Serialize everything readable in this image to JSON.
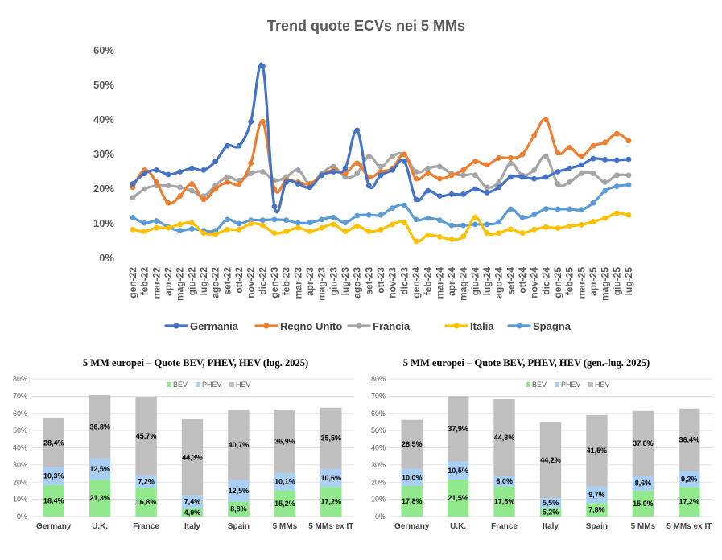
{
  "chart_data": [
    {
      "type": "line",
      "title": "Trend quote ECVs nei 5 MMs",
      "yticks": [
        "0%",
        "10%",
        "20%",
        "30%",
        "40%",
        "50%",
        "60%"
      ],
      "ylim": [
        0,
        60
      ],
      "legend_position": "bottom",
      "x": [
        "gen-22",
        "feb-22",
        "mar-22",
        "apr-22",
        "mag-22",
        "giu-22",
        "lug-22",
        "ago-22",
        "set-22",
        "ott-22",
        "nov-22",
        "dic-22",
        "gen-23",
        "feb-23",
        "mar-23",
        "apr-23",
        "mag-23",
        "giu-23",
        "lug-23",
        "ago-23",
        "set-23",
        "ott-23",
        "nov-23",
        "dic-23",
        "gen-24",
        "feb-24",
        "mar-24",
        "apr-24",
        "mag-24",
        "giu-24",
        "lug-24",
        "ago-24",
        "set-24",
        "ott-24",
        "nov-24",
        "dic-24",
        "gen-25",
        "feb-25",
        "mar-25",
        "apr-25",
        "mag-25",
        "giu-25",
        "lug-25"
      ],
      "series": [
        {
          "name": "Germania",
          "color": "#4472C4",
          "values": [
            21.5,
            24.5,
            25.5,
            24.2,
            25.0,
            26.0,
            25.5,
            28.0,
            32.5,
            32.5,
            39.5,
            55.5,
            15.0,
            22.0,
            21.5,
            20.5,
            24.0,
            25.0,
            26.0,
            37.0,
            21.0,
            24.0,
            25.5,
            28.0,
            17.0,
            19.5,
            18.0,
            18.5,
            18.5,
            20.0,
            19.0,
            20.5,
            23.5,
            23.5,
            23.0,
            23.5,
            25.0,
            26.0,
            27.0,
            28.8,
            28.5,
            28.4,
            28.6
          ]
        },
        {
          "name": "Regno Unito",
          "color": "#ED7D31",
          "values": [
            20.5,
            25.5,
            22.0,
            16.0,
            18.0,
            21.5,
            17.0,
            20.0,
            22.0,
            21.5,
            27.5,
            39.5,
            20.0,
            22.5,
            22.0,
            21.5,
            24.0,
            25.5,
            24.5,
            27.5,
            23.5,
            25.0,
            26.0,
            30.0,
            23.0,
            24.5,
            23.0,
            24.0,
            25.5,
            28.0,
            27.0,
            29.0,
            29.0,
            30.0,
            35.5,
            40.0,
            30.5,
            32.0,
            29.5,
            32.5,
            33.5,
            36.0,
            34.0
          ]
        },
        {
          "name": "Francia",
          "color": "#A5A5A5",
          "values": [
            17.5,
            20.0,
            21.0,
            21.0,
            20.5,
            19.5,
            18.0,
            21.0,
            23.5,
            22.5,
            24.5,
            25.0,
            22.5,
            23.5,
            25.5,
            21.5,
            24.5,
            26.5,
            23.5,
            24.5,
            29.5,
            26.5,
            29.5,
            30.0,
            25.0,
            26.0,
            26.5,
            24.5,
            24.0,
            24.0,
            20.5,
            22.0,
            27.5,
            24.0,
            25.5,
            29.5,
            21.5,
            22.0,
            24.5,
            24.5,
            22.0,
            24.0,
            24.0
          ]
        },
        {
          "name": "Italia",
          "color": "#FFC000",
          "values": [
            8.3,
            7.8,
            8.8,
            8.8,
            9.8,
            10.2,
            7.3,
            7.0,
            8.3,
            8.3,
            10.0,
            9.5,
            7.3,
            7.8,
            8.8,
            7.8,
            8.8,
            9.8,
            7.8,
            9.3,
            7.8,
            8.3,
            9.8,
            10.3,
            4.9,
            6.7,
            6.2,
            5.5,
            6.3,
            11.8,
            7.3,
            7.3,
            8.4,
            7.3,
            8.3,
            9.0,
            8.7,
            9.3,
            9.7,
            10.6,
            11.6,
            13.0,
            12.5
          ]
        },
        {
          "name": "Spagna",
          "color": "#5B9BD5",
          "values": [
            11.8,
            10.2,
            10.8,
            9.0,
            8.0,
            8.5,
            8.0,
            8.0,
            11.2,
            10.0,
            11.0,
            11.0,
            11.2,
            11.0,
            10.2,
            10.3,
            11.2,
            11.8,
            10.3,
            12.3,
            12.5,
            12.5,
            14.5,
            15.3,
            11.2,
            11.6,
            11.0,
            9.5,
            9.5,
            9.8,
            9.8,
            10.5,
            14.2,
            11.8,
            12.6,
            14.3,
            14.2,
            14.2,
            14.0,
            16.0,
            19.5,
            20.8,
            21.2
          ]
        }
      ]
    },
    {
      "type": "bar",
      "stacked": true,
      "title": "5 MM europei – Quote BEV, PHEV, HEV (lug. 2025)",
      "yticks": [
        "0%",
        "10%",
        "20%",
        "30%",
        "40%",
        "50%",
        "60%",
        "70%",
        "80%"
      ],
      "ylim": [
        0,
        80
      ],
      "legend_position": "top",
      "categories": [
        "Germany",
        "U.K.",
        "France",
        "Italy",
        "Spain",
        "5 MMs",
        "5 MMs ex IT"
      ],
      "series": [
        {
          "name": "BEV",
          "color": "#92E88C",
          "values": [
            18.4,
            21.3,
            16.8,
            4.9,
            8.8,
            15.2,
            17.2
          ],
          "labels": [
            "18,4%",
            "21,3%",
            "16,8%",
            "4,9%",
            "8,8%",
            "15,2%",
            "17,2%"
          ]
        },
        {
          "name": "PHEV",
          "color": "#A9CFF5",
          "values": [
            10.3,
            12.5,
            7.2,
            7.4,
            12.5,
            10.1,
            10.6
          ],
          "labels": [
            "10,3%",
            "12,5%",
            "7,2%",
            "7,4%",
            "12,5%",
            "10,1%",
            "10,6%"
          ]
        },
        {
          "name": "HEV",
          "color": "#BFBFBF",
          "values": [
            28.4,
            36.8,
            45.7,
            44.3,
            40.7,
            36.9,
            35.5
          ],
          "labels": [
            "28,4%",
            "36,8%",
            "45,7%",
            "44,3%",
            "40,7%",
            "36,9%",
            "35,5%"
          ]
        }
      ]
    },
    {
      "type": "bar",
      "stacked": true,
      "title": "5 MM europei – Quote BEV, PHEV, HEV (gen.-lug. 2025)",
      "yticks": [
        "0%",
        "10%",
        "20%",
        "30%",
        "40%",
        "50%",
        "60%",
        "70%",
        "80%"
      ],
      "ylim": [
        0,
        80
      ],
      "legend_position": "top",
      "categories": [
        "Germany",
        "U.K.",
        "France",
        "Italy",
        "Spain",
        "5 MMs",
        "5 MMs ex IT"
      ],
      "series": [
        {
          "name": "BEV",
          "color": "#92E88C",
          "values": [
            17.8,
            21.5,
            17.5,
            5.2,
            7.8,
            15.0,
            17.2
          ],
          "labels": [
            "17,8%",
            "21,5%",
            "17,5%",
            "5,2%",
            "7,8%",
            "15,0%",
            "17,2%"
          ]
        },
        {
          "name": "PHEV",
          "color": "#A9CFF5",
          "values": [
            10.0,
            10.5,
            6.0,
            5.5,
            9.7,
            8.6,
            9.2
          ],
          "labels": [
            "10,0%",
            "10,5%",
            "6,0%",
            "5,5%",
            "9,7%",
            "8,6%",
            "9,2%"
          ]
        },
        {
          "name": "HEV",
          "color": "#BFBFBF",
          "values": [
            28.5,
            37.9,
            44.8,
            44.2,
            41.5,
            37.8,
            36.4
          ],
          "labels": [
            "28,5%",
            "37,9%",
            "44,8%",
            "44,2%",
            "41,5%",
            "37,8%",
            "36,4%"
          ]
        }
      ]
    }
  ]
}
